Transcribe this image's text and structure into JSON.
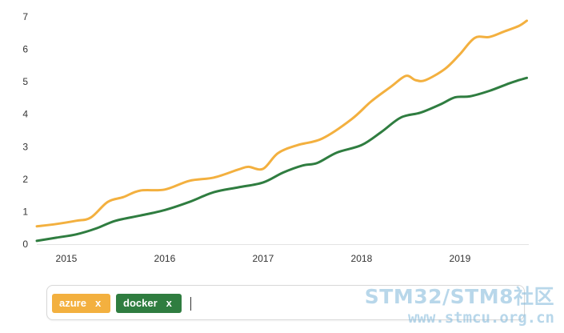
{
  "chart_data": {
    "type": "line",
    "title": "",
    "xlabel": "",
    "ylabel": "",
    "xlim": [
      2014.7,
      2019.7
    ],
    "ylim": [
      0,
      7
    ],
    "y_ticks": [
      "0",
      "1",
      "2",
      "3",
      "4",
      "5",
      "6",
      "7"
    ],
    "x_ticks": [
      {
        "value": 2015,
        "label": "2015"
      },
      {
        "value": 2016,
        "label": "2016"
      },
      {
        "value": 2017,
        "label": "2017"
      },
      {
        "value": 2018,
        "label": "2018"
      },
      {
        "value": 2019,
        "label": "2019"
      }
    ],
    "grid": false,
    "legend": "bottom (tag bar)",
    "series": [
      {
        "name": "azure",
        "color": "#f3b03f",
        "points": [
          [
            2014.7,
            0.55
          ],
          [
            2014.9,
            0.62
          ],
          [
            2015.1,
            0.72
          ],
          [
            2015.25,
            0.82
          ],
          [
            2015.42,
            1.3
          ],
          [
            2015.58,
            1.45
          ],
          [
            2015.75,
            1.65
          ],
          [
            2016.0,
            1.68
          ],
          [
            2016.25,
            1.95
          ],
          [
            2016.5,
            2.05
          ],
          [
            2016.75,
            2.3
          ],
          [
            2016.85,
            2.38
          ],
          [
            2017.0,
            2.32
          ],
          [
            2017.15,
            2.8
          ],
          [
            2017.35,
            3.05
          ],
          [
            2017.6,
            3.25
          ],
          [
            2017.9,
            3.85
          ],
          [
            2018.1,
            4.4
          ],
          [
            2018.3,
            4.85
          ],
          [
            2018.45,
            5.18
          ],
          [
            2018.55,
            5.05
          ],
          [
            2018.65,
            5.05
          ],
          [
            2018.85,
            5.4
          ],
          [
            2019.0,
            5.85
          ],
          [
            2019.15,
            6.35
          ],
          [
            2019.3,
            6.38
          ],
          [
            2019.45,
            6.55
          ],
          [
            2019.6,
            6.72
          ],
          [
            2019.68,
            6.88
          ]
        ]
      },
      {
        "name": "docker",
        "color": "#2f7d40",
        "points": [
          [
            2014.7,
            0.1
          ],
          [
            2014.9,
            0.2
          ],
          [
            2015.1,
            0.3
          ],
          [
            2015.3,
            0.48
          ],
          [
            2015.5,
            0.72
          ],
          [
            2015.75,
            0.88
          ],
          [
            2016.0,
            1.05
          ],
          [
            2016.25,
            1.3
          ],
          [
            2016.5,
            1.6
          ],
          [
            2016.75,
            1.75
          ],
          [
            2017.0,
            1.9
          ],
          [
            2017.2,
            2.2
          ],
          [
            2017.4,
            2.42
          ],
          [
            2017.55,
            2.5
          ],
          [
            2017.75,
            2.82
          ],
          [
            2018.0,
            3.05
          ],
          [
            2018.2,
            3.45
          ],
          [
            2018.4,
            3.9
          ],
          [
            2018.6,
            4.05
          ],
          [
            2018.8,
            4.3
          ],
          [
            2018.95,
            4.52
          ],
          [
            2019.1,
            4.55
          ],
          [
            2019.3,
            4.72
          ],
          [
            2019.5,
            4.95
          ],
          [
            2019.6,
            5.05
          ],
          [
            2019.68,
            5.12
          ]
        ]
      }
    ]
  },
  "tags": [
    {
      "label": "azure",
      "remove": "x",
      "color": "#f3b03f"
    },
    {
      "label": "docker",
      "remove": "x",
      "color": "#2f7d40"
    }
  ],
  "watermark": {
    "line1": "STM32/STM8社区",
    "line2": "www.stmcu.org.cn"
  }
}
